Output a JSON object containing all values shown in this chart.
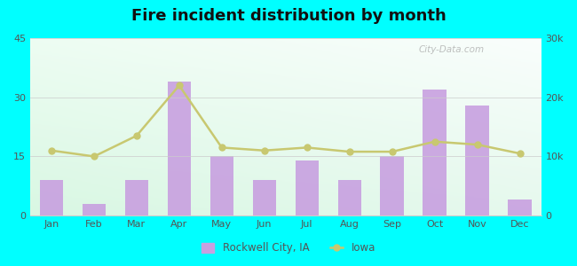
{
  "title": "Fire incident distribution by month",
  "months": [
    "Jan",
    "Feb",
    "Mar",
    "Apr",
    "May",
    "Jun",
    "Jul",
    "Aug",
    "Sep",
    "Oct",
    "Nov",
    "Dec"
  ],
  "rockwell_values": [
    9,
    3,
    9,
    34,
    15,
    9,
    14,
    9,
    15,
    32,
    28,
    4
  ],
  "iowa_values": [
    11000,
    10000,
    13500,
    22000,
    11500,
    11000,
    11500,
    10800,
    10800,
    12500,
    12000,
    10500
  ],
  "bar_color": "#c8a0e0",
  "line_color": "#c8c870",
  "left_ylim": [
    0,
    45
  ],
  "right_ylim": [
    0,
    30000
  ],
  "left_yticks": [
    0,
    15,
    30,
    45
  ],
  "right_yticks": [
    0,
    10000,
    20000,
    30000
  ],
  "right_yticklabels": [
    "0",
    "10k",
    "20k",
    "30k"
  ],
  "outer_bg": "#00ffff",
  "legend_label_bar": "Rockwell City, IA",
  "legend_label_line": "Iowa",
  "watermark": "City-Data.com",
  "grad_top_left": "#e8fff0",
  "grad_bottom_left": "#b0f0d0",
  "grad_top_right": "#f8fffc",
  "grad_bottom_right": "#e0f8ee"
}
